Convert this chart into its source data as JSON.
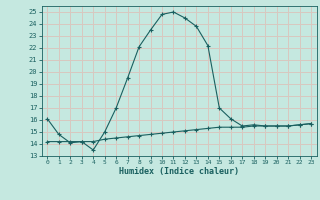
{
  "xlabel": "Humidex (Indice chaleur)",
  "bg_color": "#c5e8e0",
  "grid_color": "#d8c8c0",
  "line_color": "#1a6060",
  "xlim": [
    -0.5,
    23.5
  ],
  "ylim": [
    13,
    25.5
  ],
  "yticks": [
    13,
    14,
    15,
    16,
    17,
    18,
    19,
    20,
    21,
    22,
    23,
    24,
    25
  ],
  "xticks": [
    0,
    1,
    2,
    3,
    4,
    5,
    6,
    7,
    8,
    9,
    10,
    11,
    12,
    13,
    14,
    15,
    16,
    17,
    18,
    19,
    20,
    21,
    22,
    23
  ],
  "curve1_x": [
    0,
    1,
    2,
    3,
    4,
    5,
    6,
    7,
    8,
    9,
    10,
    11,
    12,
    13,
    14,
    15,
    16,
    17,
    18,
    19,
    20,
    21,
    22,
    23
  ],
  "curve1_y": [
    16.1,
    14.8,
    14.1,
    14.2,
    13.5,
    15.0,
    17.0,
    19.5,
    22.1,
    23.5,
    24.8,
    25.0,
    24.5,
    23.8,
    22.2,
    17.0,
    16.1,
    15.5,
    15.6,
    15.5,
    15.5,
    15.5,
    15.6,
    15.7
  ],
  "curve2_x": [
    0,
    1,
    2,
    3,
    4,
    5,
    6,
    7,
    8,
    9,
    10,
    11,
    12,
    13,
    14,
    15,
    16,
    17,
    18,
    19,
    20,
    21,
    22,
    23
  ],
  "curve2_y": [
    14.2,
    14.2,
    14.2,
    14.2,
    14.2,
    14.4,
    14.5,
    14.6,
    14.7,
    14.8,
    14.9,
    15.0,
    15.1,
    15.2,
    15.3,
    15.4,
    15.4,
    15.4,
    15.5,
    15.5,
    15.5,
    15.5,
    15.6,
    15.7
  ]
}
